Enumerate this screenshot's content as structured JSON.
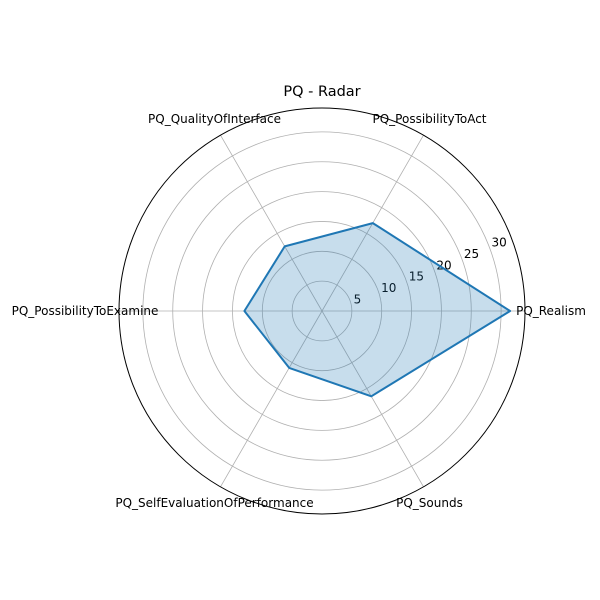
{
  "chart_data": {
    "type": "radar",
    "title": "PQ - Radar",
    "categories": [
      "PQ_Realism",
      "PQ_PossibilityToAct",
      "PQ_QualityOfInterface",
      "PQ_PossibilityToExamine",
      "PQ_SelfEvaluationOfPerformance",
      "PQ_Sounds"
    ],
    "values": [
      31.5,
      17.0,
      12.5,
      13.0,
      11.0,
      16.5
    ],
    "radial_ticks": [
      5,
      10,
      15,
      20,
      25,
      30
    ],
    "rlim": [
      0,
      34
    ],
    "grid": true,
    "colors": {
      "series": "#1f77b4",
      "grid": "#b0b0b0"
    }
  }
}
